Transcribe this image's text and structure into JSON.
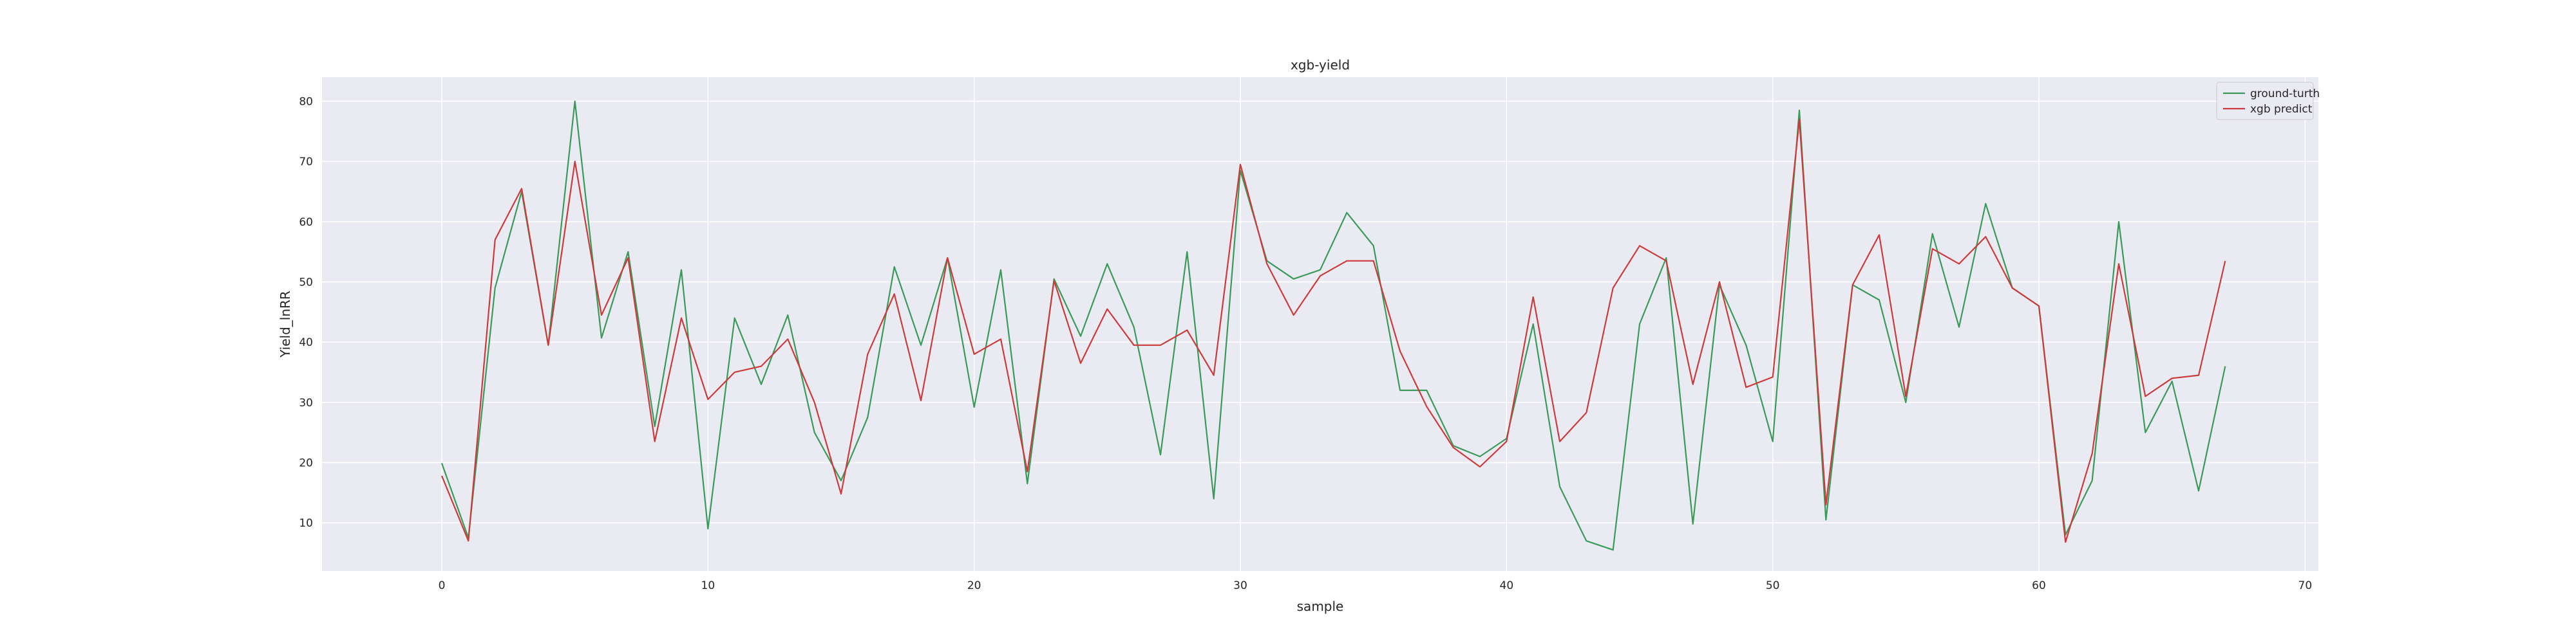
{
  "chart_data": {
    "type": "line",
    "title": "xgb-yield",
    "xlabel": "sample",
    "ylabel": "Yield_lnRR",
    "xlim": [
      -4.5,
      70.5
    ],
    "ylim": [
      2,
      84
    ],
    "xticks": [
      0,
      10,
      20,
      30,
      40,
      50,
      60,
      70
    ],
    "yticks": [
      10,
      20,
      30,
      40,
      50,
      60,
      70,
      80
    ],
    "grid": true,
    "legend_position": "top-right",
    "series": [
      {
        "name": "ground-turth",
        "color": "#3a9a5a",
        "values": [
          19.9,
          7.5,
          49,
          65,
          39.5,
          80,
          40.7,
          55,
          26,
          52,
          9,
          44,
          33,
          44.5,
          25,
          17,
          27.5,
          52.5,
          39.5,
          54,
          29.2,
          52,
          16.5,
          50.5,
          41,
          53,
          42.5,
          21.3,
          55,
          14,
          68.5,
          53.5,
          50.5,
          52,
          61.5,
          56,
          32,
          32,
          22.8,
          21,
          24,
          43,
          16,
          7,
          5.5,
          43,
          54,
          9.8,
          49.5,
          39.5,
          23.5,
          78.5,
          10.5,
          49.5,
          47,
          30,
          58,
          42.5,
          63,
          49,
          46,
          8,
          17,
          60,
          25,
          33.5,
          15.3,
          36
        ]
      },
      {
        "name": "xgb predict",
        "color": "#cc3b3b",
        "values": [
          17.8,
          7,
          57,
          65.5,
          39.5,
          70,
          44.5,
          54,
          23.5,
          44,
          30.5,
          35,
          36,
          40.5,
          30,
          14.8,
          38,
          48,
          30.3,
          54,
          38,
          40.5,
          18.5,
          50.2,
          36.5,
          45.5,
          39.5,
          39.5,
          42,
          34.5,
          69.5,
          53,
          44.5,
          51,
          53.5,
          53.5,
          38.5,
          29.3,
          22.5,
          19.3,
          23.5,
          47.5,
          23.5,
          28.3,
          49,
          56,
          53.5,
          33,
          50,
          32.5,
          34.2,
          77,
          13,
          49.5,
          57.8,
          31,
          55.5,
          53,
          57.5,
          49,
          46,
          6.8,
          21.5,
          53,
          31,
          34,
          34.5,
          53.5
        ]
      }
    ]
  },
  "colors": {
    "plot_background": "#eaeaf2",
    "grid": "#ffffff",
    "text": "#262626"
  }
}
